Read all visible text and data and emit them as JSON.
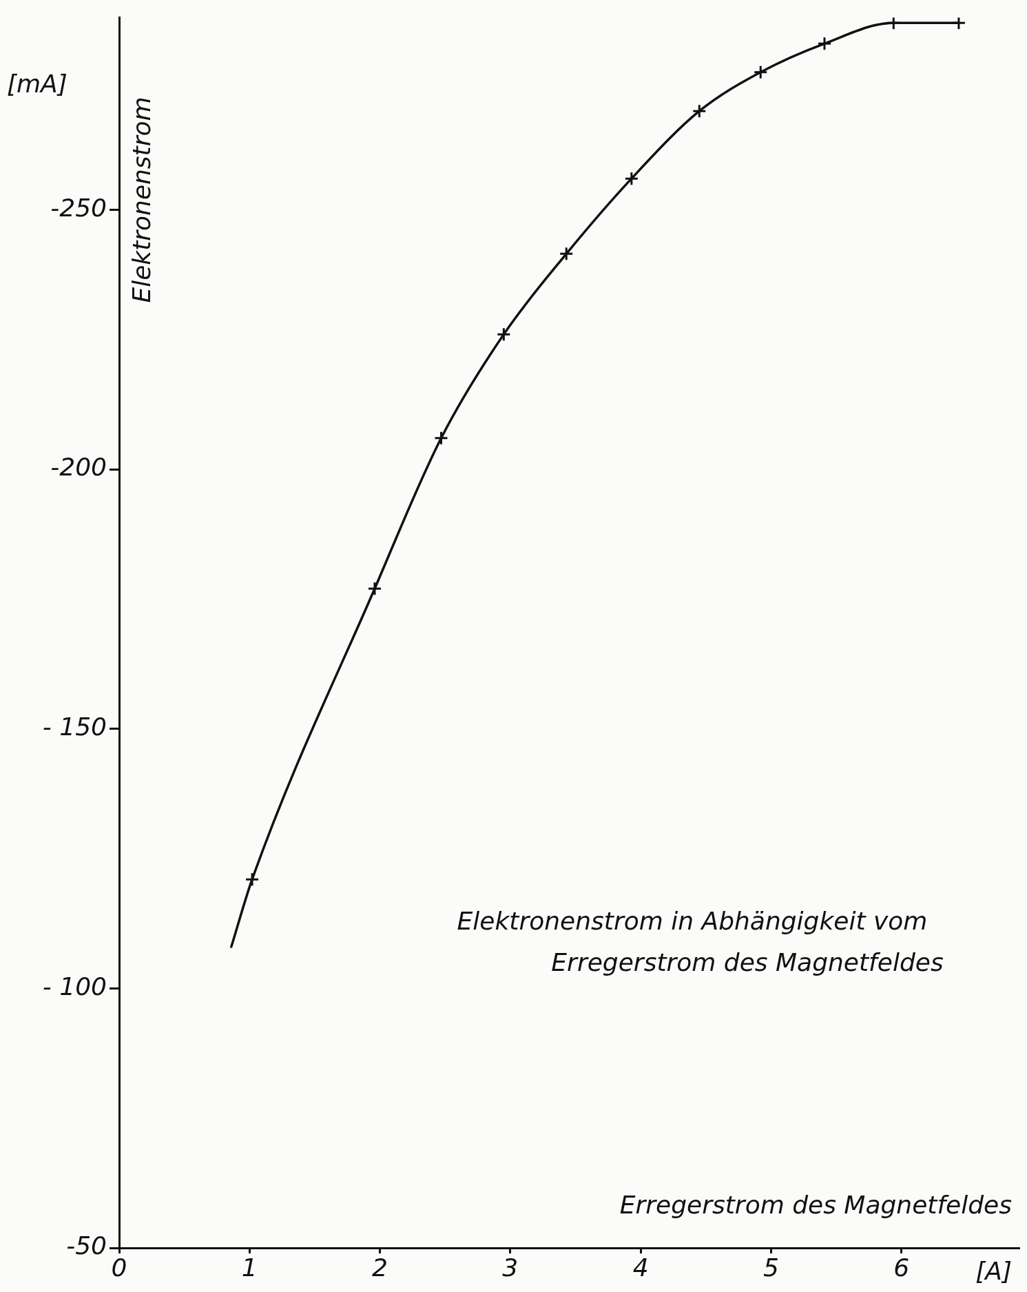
{
  "chart_data": {
    "type": "line",
    "xlabel": "Erregerstrom des Magnetfeldes",
    "ylabel": "Elektronenstrom",
    "annotations": [
      "Elektronenstrom in Abhängigkeit vom Erregerstrom des Magnetfeldes",
      "[mA]",
      "[A]"
    ],
    "xlim": [
      0,
      6.9
    ],
    "ylim": [
      -50,
      -287
    ],
    "xticks": [
      0,
      1,
      2,
      3,
      4,
      5,
      6
    ],
    "yticks": [
      -50,
      {
        "value": -100,
        "label": "- 100"
      },
      {
        "value": -150,
        "label": "- 150"
      },
      -200,
      -250
    ],
    "grid": false,
    "legend": false,
    "line_style": "solid",
    "series": [
      {
        "color": "#111111",
        "marker": "none",
        "x": [
          0.86,
          1.02,
          1.96,
          2.47,
          2.95,
          3.43,
          3.93,
          4.45,
          4.92,
          5.41,
          5.94,
          6.44
        ],
        "values": [
          -108,
          -121,
          -177,
          -206,
          -226,
          -241.5,
          -256,
          -269,
          -276.5,
          -282,
          -286,
          -286
        ]
      },
      {
        "type": "scatter",
        "color": "#111111",
        "marker": "cross",
        "x": [
          1.02,
          1.96,
          2.47,
          2.95,
          3.43,
          3.93,
          4.45,
          4.92,
          5.41,
          5.94,
          6.44
        ],
        "values": [
          -121,
          -177,
          -206,
          -226,
          -241.5,
          -256,
          -269,
          -276.5,
          -282,
          -286,
          -286
        ]
      }
    ]
  }
}
